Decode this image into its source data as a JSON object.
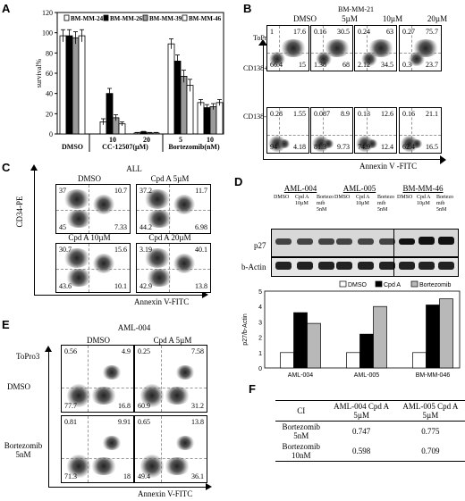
{
  "panels": {
    "A": "A",
    "B": "B",
    "C": "C",
    "D": "D",
    "E": "E",
    "F": "F"
  },
  "panelA": {
    "chart_data": {
      "type": "bar",
      "ylabel": "survival%",
      "ylim": [
        0,
        120
      ],
      "yticks": [
        "0",
        "20",
        "40",
        "60",
        "80",
        "100",
        "120"
      ],
      "group_labels": [
        "DMSO",
        "CC-12507(µM)",
        "Bortezomib(nM)"
      ],
      "categories": [
        "DMSO",
        "10",
        "20",
        "5",
        "10"
      ],
      "series": [
        {
          "name": "BM-MM-24",
          "color": "#ffffff",
          "values": [
            97,
            12,
            1,
            89,
            31
          ]
        },
        {
          "name": "BM-MM-26",
          "color": "#000000",
          "values": [
            97,
            40,
            2,
            72,
            26
          ]
        },
        {
          "name": "BM-MM-39",
          "color": "#9a9a9a",
          "values": [
            95,
            16,
            1,
            57,
            27
          ]
        },
        {
          "name": "BM-MM-46",
          "color": "#ffffff",
          "values": [
            97,
            10,
            1,
            48,
            31
          ]
        }
      ],
      "errors": [
        [
          6,
          3,
          0.5,
          5,
          3
        ],
        [
          6,
          5,
          0.5,
          6,
          3
        ],
        [
          6,
          3,
          0.5,
          6,
          3
        ],
        [
          6,
          2,
          0.5,
          6,
          3
        ]
      ]
    }
  },
  "panelB": {
    "title": "BM-MM-21",
    "cols": [
      "DMSO",
      "5µM",
      "10µM",
      "20µM"
    ],
    "ylabel_top": "ToPro3",
    "ylabel_row1": "CD138+",
    "ylabel_row2": "CD138-",
    "xlabel": "Annexin V -FITC",
    "row1": [
      [
        "1",
        "17.6",
        "66.4",
        "15"
      ],
      [
        "0.16",
        "30.5",
        "1.38",
        "68"
      ],
      [
        "0.24",
        "63",
        "2.12",
        "34.5"
      ],
      [
        "0.27",
        "75.7",
        "0.3",
        "23.7"
      ]
    ],
    "row2": [
      [
        "0.28",
        "1.55",
        "94",
        "4.18"
      ],
      [
        "0.087",
        "8.9",
        "81.3",
        "9.73"
      ],
      [
        "0.13",
        "12.6",
        "74.9",
        "12.4"
      ],
      [
        "0.16",
        "21.1",
        "62.4",
        "16.5"
      ]
    ]
  },
  "panelC": {
    "title": "ALL",
    "ylabel": "CD34-PE",
    "xlabel": "Annexin V-FITC",
    "plots": [
      {
        "label": "DMSO",
        "q": [
          "37",
          "10.7",
          "45",
          "7.33"
        ]
      },
      {
        "label": "Cpd A 5µM",
        "q": [
          "37.2",
          "11.7",
          "44.2",
          "6.98"
        ]
      },
      {
        "label": "Cpd A 10µM",
        "q": [
          "30.7",
          "15.6",
          "43.6",
          "10.1"
        ]
      },
      {
        "label": "Cpd A 20µM",
        "q": [
          "3.19",
          "40.1",
          "42.9",
          "13.8"
        ]
      }
    ]
  },
  "panelD": {
    "groups": [
      "AML-004",
      "AML-005",
      "BM-MM-46"
    ],
    "lanes": [
      "DMSO",
      "Cpd A 10µM",
      "Bortezomib 5nM"
    ],
    "bands": [
      "p27",
      "b-Actin"
    ],
    "chart_data": {
      "type": "bar",
      "ylabel": "p27/b-Actin",
      "ylim": [
        0,
        5
      ],
      "yticks": [
        "0",
        "1",
        "2",
        "3",
        "4",
        "5"
      ],
      "categories": [
        "AML-004",
        "AML-005",
        "BM-MM-046"
      ],
      "series": [
        {
          "name": "DMSO",
          "color": "#ffffff",
          "values": [
            1,
            1,
            1
          ]
        },
        {
          "name": "Cpd A",
          "color": "#000000",
          "values": [
            3.6,
            2.2,
            4.1
          ]
        },
        {
          "name": "Bortezomib",
          "color": "#b8b8b8",
          "values": [
            2.9,
            4.0,
            4.5
          ]
        }
      ]
    }
  },
  "panelE": {
    "title": "AML-004",
    "cols": [
      "DMSO",
      "Cpd A 5µM"
    ],
    "rows": [
      "DMSO",
      "Bortezomib 5nM"
    ],
    "ylabel": "ToPro3",
    "xlabel": "Annexin V-FITC",
    "q": [
      [
        "0.56",
        "4.9",
        "77.7",
        "16.8"
      ],
      [
        "0.25",
        "7.58",
        "60.9",
        "31.2"
      ],
      [
        "0.81",
        "9.91",
        "71.3",
        "18"
      ],
      [
        "0.65",
        "13.8",
        "49.4",
        "36.1"
      ]
    ]
  },
  "panelF": {
    "header": [
      "CI",
      "AML-004 Cpd A 5µM",
      "AML-005 Cpd A 5µM"
    ],
    "rows": [
      [
        "Bortezomib 5nM",
        "0.747",
        "0.775"
      ],
      [
        "Bortezomib 10nM",
        "0.598",
        "0.709"
      ]
    ]
  }
}
